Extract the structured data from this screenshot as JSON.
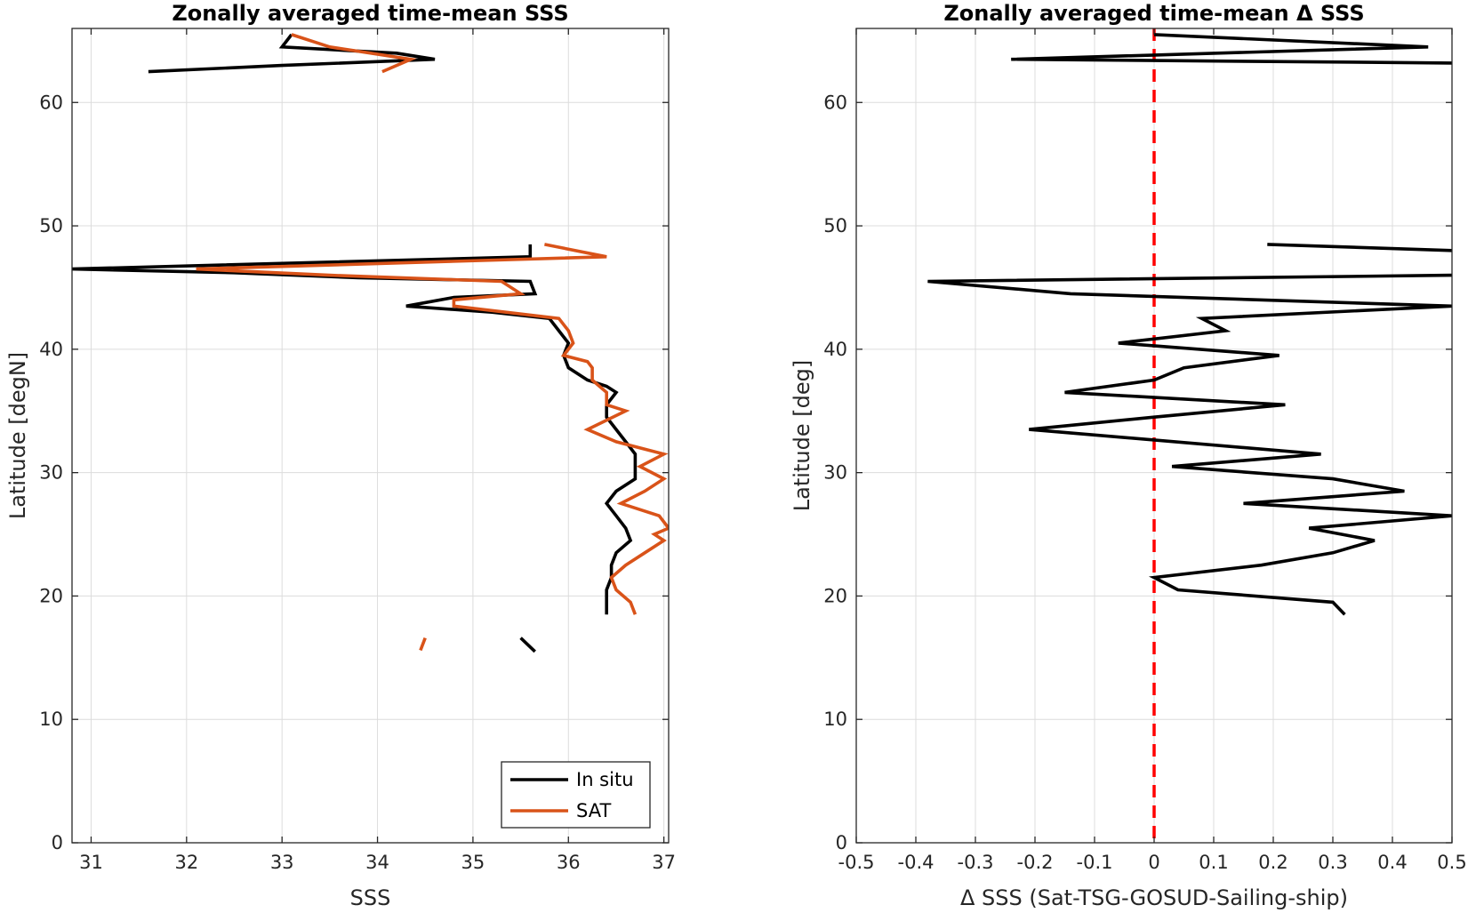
{
  "chart_data": [
    {
      "type": "line",
      "title": "Zonally averaged time-mean SSS",
      "xlabel": "SSS",
      "ylabel": "Latitude [degN]",
      "xlim": [
        30.8,
        37.05
      ],
      "ylim": [
        0,
        66
      ],
      "xticks": [
        31,
        32,
        33,
        34,
        35,
        36,
        37
      ],
      "yticks": [
        0,
        10,
        20,
        30,
        40,
        50,
        60
      ],
      "grid": true,
      "legend": {
        "position": "bottom-right",
        "entries": [
          "In situ",
          "SAT"
        ]
      },
      "series": [
        {
          "name": "In situ",
          "color": "#000000",
          "segments": [
            [
              [
                33.1,
                65.5
              ],
              [
                33.0,
                64.5
              ],
              [
                34.2,
                64.0
              ],
              [
                34.6,
                63.5
              ],
              [
                33.0,
                63.0
              ],
              [
                31.6,
                62.5
              ]
            ],
            [
              [
                35.6,
                48.5
              ],
              [
                35.6,
                47.5
              ],
              [
                30.8,
                46.5
              ],
              [
                32.5,
                46.2
              ],
              [
                33.8,
                45.8
              ],
              [
                35.6,
                45.5
              ],
              [
                35.65,
                44.5
              ],
              [
                34.8,
                44.2
              ],
              [
                34.3,
                43.5
              ],
              [
                35.2,
                43.0
              ],
              [
                35.8,
                42.5
              ],
              [
                35.9,
                41.5
              ],
              [
                36.0,
                40.5
              ],
              [
                35.95,
                39.5
              ],
              [
                36.0,
                38.5
              ],
              [
                36.2,
                37.5
              ],
              [
                36.4,
                37.0
              ],
              [
                36.5,
                36.5
              ],
              [
                36.4,
                35.5
              ],
              [
                36.4,
                34.5
              ],
              [
                36.5,
                33.5
              ],
              [
                36.6,
                32.5
              ],
              [
                36.7,
                31.5
              ],
              [
                36.7,
                30.5
              ],
              [
                36.7,
                29.5
              ],
              [
                36.5,
                28.5
              ],
              [
                36.4,
                27.5
              ],
              [
                36.5,
                26.5
              ],
              [
                36.6,
                25.5
              ],
              [
                36.65,
                24.5
              ],
              [
                36.5,
                23.5
              ],
              [
                36.45,
                22.5
              ],
              [
                36.45,
                21.5
              ],
              [
                36.4,
                20.5
              ],
              [
                36.4,
                18.5
              ]
            ],
            [
              [
                35.5,
                16.6
              ],
              [
                35.65,
                15.5
              ]
            ]
          ]
        },
        {
          "name": "SAT",
          "color": "#d95319",
          "segments": [
            [
              [
                33.1,
                65.5
              ],
              [
                33.5,
                64.5
              ],
              [
                34.35,
                63.5
              ],
              [
                34.05,
                62.5
              ]
            ],
            [
              [
                35.75,
                48.5
              ],
              [
                36.4,
                47.5
              ],
              [
                32.1,
                46.5
              ],
              [
                33.5,
                46.0
              ],
              [
                35.3,
                45.5
              ],
              [
                35.5,
                44.5
              ],
              [
                34.8,
                44.0
              ],
              [
                34.8,
                43.5
              ],
              [
                35.9,
                42.5
              ],
              [
                36.0,
                41.5
              ],
              [
                36.05,
                40.5
              ],
              [
                35.95,
                39.5
              ],
              [
                36.2,
                39.0
              ],
              [
                36.25,
                38.5
              ],
              [
                36.25,
                37.5
              ],
              [
                36.4,
                36.5
              ],
              [
                36.4,
                35.5
              ],
              [
                36.6,
                35.0
              ],
              [
                36.2,
                33.5
              ],
              [
                36.5,
                32.5
              ],
              [
                37.0,
                31.5
              ],
              [
                36.75,
                30.5
              ],
              [
                37.0,
                29.5
              ],
              [
                36.8,
                28.5
              ],
              [
                36.55,
                27.5
              ],
              [
                36.95,
                26.5
              ],
              [
                37.05,
                25.5
              ],
              [
                36.9,
                25.0
              ],
              [
                37.0,
                24.5
              ],
              [
                36.8,
                23.5
              ],
              [
                36.6,
                22.5
              ],
              [
                36.45,
                21.5
              ],
              [
                36.5,
                20.5
              ],
              [
                36.65,
                19.5
              ],
              [
                36.7,
                18.5
              ]
            ],
            [
              [
                34.5,
                16.6
              ],
              [
                34.45,
                15.6
              ]
            ]
          ]
        }
      ]
    },
    {
      "type": "line",
      "title": "Zonally averaged time-mean Δ SSS",
      "xlabel": "Δ SSS (Sat-TSG-GOSUD-Sailing-ship)",
      "ylabel": "Latitude [deg]",
      "xlim": [
        -0.5,
        0.5
      ],
      "ylim": [
        0,
        66
      ],
      "xticks": [
        -0.5,
        -0.4,
        -0.3,
        -0.2,
        -0.1,
        0,
        0.1,
        0.2,
        0.3,
        0.4,
        0.5
      ],
      "yticks": [
        0,
        10,
        20,
        30,
        40,
        50,
        60
      ],
      "grid": true,
      "reference_line": {
        "x": 0,
        "style": "dashed",
        "color": "#ff0000"
      },
      "series": [
        {
          "name": "",
          "color": "#000000",
          "segments": [
            [
              [
                0.0,
                65.5
              ],
              [
                0.46,
                64.5
              ],
              [
                -0.24,
                63.5
              ],
              [
                0.5,
                63.2
              ]
            ],
            [
              [
                0.19,
                48.5
              ],
              [
                0.5,
                48.0
              ]
            ],
            [
              [
                0.5,
                46.0
              ],
              [
                -0.38,
                45.5
              ],
              [
                -0.14,
                44.5
              ],
              [
                0.5,
                43.5
              ],
              [
                0.08,
                42.5
              ],
              [
                0.12,
                41.5
              ],
              [
                -0.06,
                40.5
              ],
              [
                0.21,
                39.5
              ],
              [
                0.05,
                38.5
              ],
              [
                0.0,
                37.5
              ],
              [
                -0.15,
                36.5
              ],
              [
                0.22,
                35.5
              ],
              [
                0.0,
                34.5
              ],
              [
                -0.21,
                33.5
              ],
              [
                0.28,
                31.5
              ],
              [
                0.03,
                30.5
              ],
              [
                0.3,
                29.5
              ],
              [
                0.42,
                28.5
              ],
              [
                0.15,
                27.5
              ],
              [
                0.5,
                26.5
              ],
              [
                0.26,
                25.5
              ],
              [
                0.37,
                24.5
              ],
              [
                0.3,
                23.5
              ],
              [
                0.18,
                22.5
              ],
              [
                0.0,
                21.5
              ],
              [
                0.04,
                20.5
              ],
              [
                0.3,
                19.5
              ],
              [
                0.32,
                18.5
              ]
            ]
          ]
        }
      ]
    }
  ]
}
